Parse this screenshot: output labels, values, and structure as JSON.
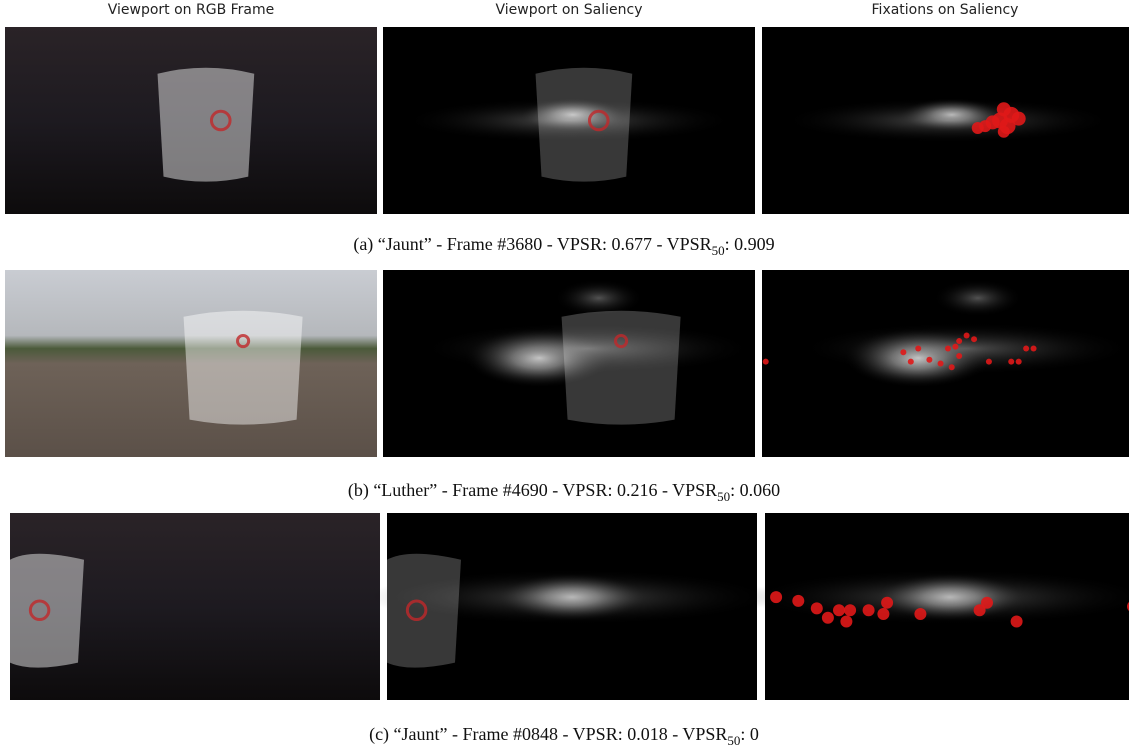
{
  "columns": [
    "Viewport on RGB Frame",
    "Viewport on Saliency",
    "Fixations on Saliency"
  ],
  "captions": [
    {
      "text": "(a) “Jaunt” - Frame #3680 - VPSR: 0.677 - VPSR",
      "subscript": "50",
      "rest": ": 0.909"
    },
    {
      "text": "(b) “Luther” - Frame #4690 - VPSR: 0.216 - VPSR",
      "subscript": "50",
      "rest": ": 0.060"
    },
    {
      "text": "(c) “Jaunt” - Frame #0848 - VPSR: 0.018 - VPSR",
      "subscript": "50",
      "rest": ": 0"
    }
  ]
}
